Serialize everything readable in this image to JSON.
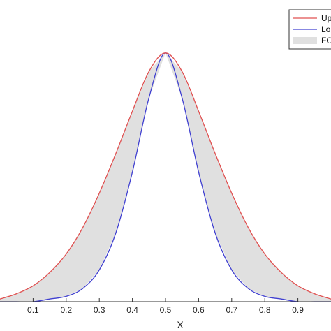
{
  "chart_data": {
    "type": "area",
    "xlabel": "X",
    "xlim": [
      0,
      1
    ],
    "ylim": [
      0,
      1.14
    ],
    "grid": false,
    "legend_position": "top-right",
    "x_ticks": [
      "0.1",
      "0.2",
      "0.3",
      "0.4",
      "0.5",
      "0.6",
      "0.7",
      "0.8",
      "0.9"
    ],
    "x": [
      0.0,
      0.05,
      0.1,
      0.15,
      0.2,
      0.25,
      0.3,
      0.35,
      0.4,
      0.45,
      0.5,
      0.55,
      0.6,
      0.65,
      0.7,
      0.75,
      0.8,
      0.85,
      0.9,
      0.95,
      1.0
    ],
    "series": [
      {
        "name": "Up",
        "color": "#e05050",
        "values": [
          0.01,
          0.03,
          0.06,
          0.11,
          0.18,
          0.28,
          0.41,
          0.56,
          0.72,
          0.87,
          0.94,
          0.87,
          0.72,
          0.56,
          0.41,
          0.28,
          0.18,
          0.11,
          0.06,
          0.03,
          0.01
        ]
      },
      {
        "name": "Lo",
        "color": "#4040d0",
        "values": [
          0.0,
          0.0,
          0.0,
          0.01,
          0.02,
          0.05,
          0.12,
          0.26,
          0.49,
          0.77,
          0.94,
          0.77,
          0.49,
          0.26,
          0.12,
          0.05,
          0.02,
          0.01,
          0.0,
          0.0,
          0.0
        ]
      }
    ],
    "band": {
      "name": "FC",
      "color": "#e0e0e0"
    }
  }
}
